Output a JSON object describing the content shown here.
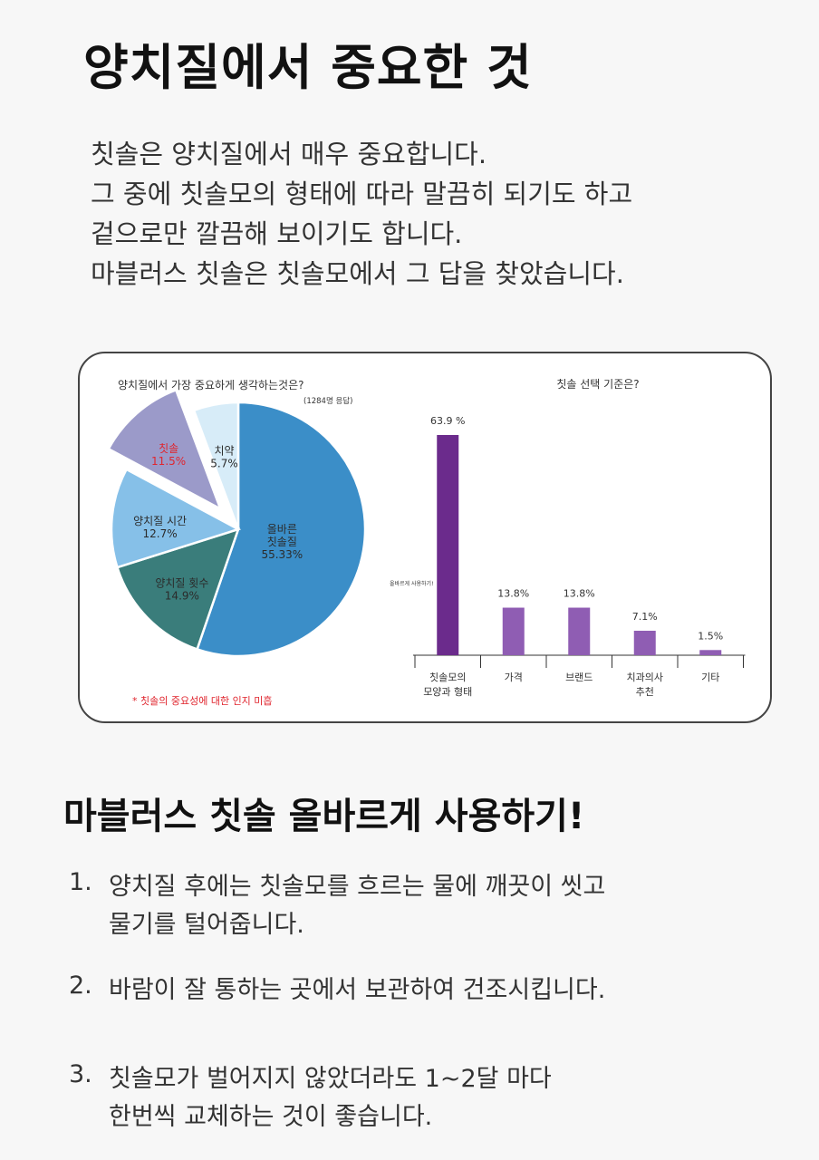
{
  "title": "양치질에서 중요한 것",
  "intro": [
    "칫솔은 양치질에서 매우 중요합니다.",
    "그 중에 칫솔모의 형태에 따라 말끔히 되기도 하고",
    "겉으로만 깔끔해 보이기도 합니다.",
    "마블러스 칫솔은 칫솔모에서 그 답을 찾았습니다."
  ],
  "chart_data": [
    {
      "type": "pie",
      "title": "양치질에서 가장 중요하게 생각하는것은?",
      "subtitle": "(1284명 응답)",
      "slices": [
        {
          "label": "올바른 칫솔질",
          "value": 55.33,
          "value_text": "55.33%",
          "color": "#3b8ec8"
        },
        {
          "label": "양치질 횟수",
          "value": 14.9,
          "value_text": "14.9%",
          "color": "#3a7d7b"
        },
        {
          "label": "양치질 시간",
          "value": 12.7,
          "value_text": "12.7%",
          "color": "#86c0e8"
        },
        {
          "label": "칫솔",
          "value": 11.5,
          "value_text": "11.5%",
          "color": "#9b9ac9",
          "exploded": true,
          "label_color": "#e0252e"
        },
        {
          "label": "치약",
          "value": 5.7,
          "value_text": "5.7%",
          "color": "#d7ecf8"
        }
      ],
      "footnote": "* 칫솔의 중요성에 대한 인지 미흡",
      "footnote_color": "#e0252e"
    },
    {
      "type": "bar",
      "title": "칫솔 선택 기준은?",
      "categories": [
        "칫솔모의 모양과 형태",
        "가격",
        "브랜드",
        "치과의사 추천",
        "기타"
      ],
      "values": [
        63.9,
        13.8,
        13.8,
        7.1,
        1.5
      ],
      "value_labels": [
        "63.9 %",
        "13.8%",
        "13.8%",
        "7.1%",
        "1.5%"
      ],
      "ylim": [
        0,
        63.9
      ],
      "colors": {
        "main": "#6b2b8c",
        "other": "#8f5db3"
      },
      "annotation": "올바르게 사용하기!"
    }
  ],
  "section2_title": "마블러스 칫솔 올바르게 사용하기!",
  "steps": [
    {
      "num": "1.",
      "lines": [
        "양치질 후에는 칫솔모를 흐르는 물에 깨끗이 씻고",
        "물기를 털어줍니다."
      ]
    },
    {
      "num": "2.",
      "lines": [
        "바람이 잘 통하는 곳에서 보관하여 건조시킵니다."
      ]
    },
    {
      "num": "3.",
      "lines": [
        "칫솔모가 벌어지지 않았더라도 1~2달 마다",
        "한번씩 교체하는 것이 좋습니다."
      ]
    }
  ]
}
